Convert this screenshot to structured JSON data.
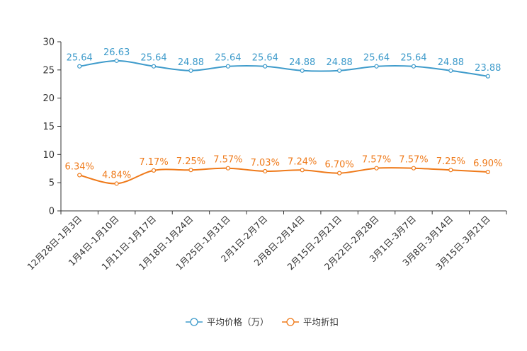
{
  "chart_data": {
    "type": "line",
    "title": "",
    "xlabel": "",
    "ylabel": "",
    "ylim": [
      0,
      30
    ],
    "yticks": [
      0,
      5,
      10,
      15,
      20,
      25,
      30
    ],
    "categories": [
      "12月28日-1月3日",
      "1月4日-1月10日",
      "1月11日-1月17日",
      "1月18日-1月24日",
      "1月25日-1月31日",
      "2月1日-2月7日",
      "2月8日-2月14日",
      "2月15日-2月21日",
      "2月22日-2月28日",
      "3月1日-3月7日",
      "3月8日-3月14日",
      "3月15日-3月21日"
    ],
    "series": [
      {
        "name": "平均价格（万）",
        "color": "#3e9bcb",
        "values": [
          25.64,
          26.63,
          25.64,
          24.88,
          25.64,
          25.64,
          24.88,
          24.88,
          25.64,
          25.64,
          24.88,
          23.88
        ],
        "labels": [
          "25.64",
          "26.63",
          "25.64",
          "24.88",
          "25.64",
          "25.64",
          "24.88",
          "24.88",
          "25.64",
          "25.64",
          "24.88",
          "23.88"
        ]
      },
      {
        "name": "平均折扣",
        "color": "#ef7a1a",
        "values": [
          6.34,
          4.84,
          7.17,
          7.25,
          7.57,
          7.03,
          7.24,
          6.7,
          7.57,
          7.57,
          7.25,
          6.9
        ],
        "labels": [
          "6.34%",
          "4.84%",
          "7.17%",
          "7.25%",
          "7.57%",
          "7.03%",
          "7.24%",
          "6.70%",
          "7.57%",
          "7.57%",
          "7.25%",
          "6.90%"
        ]
      }
    ],
    "legend": "bottom-center",
    "grid": false
  }
}
